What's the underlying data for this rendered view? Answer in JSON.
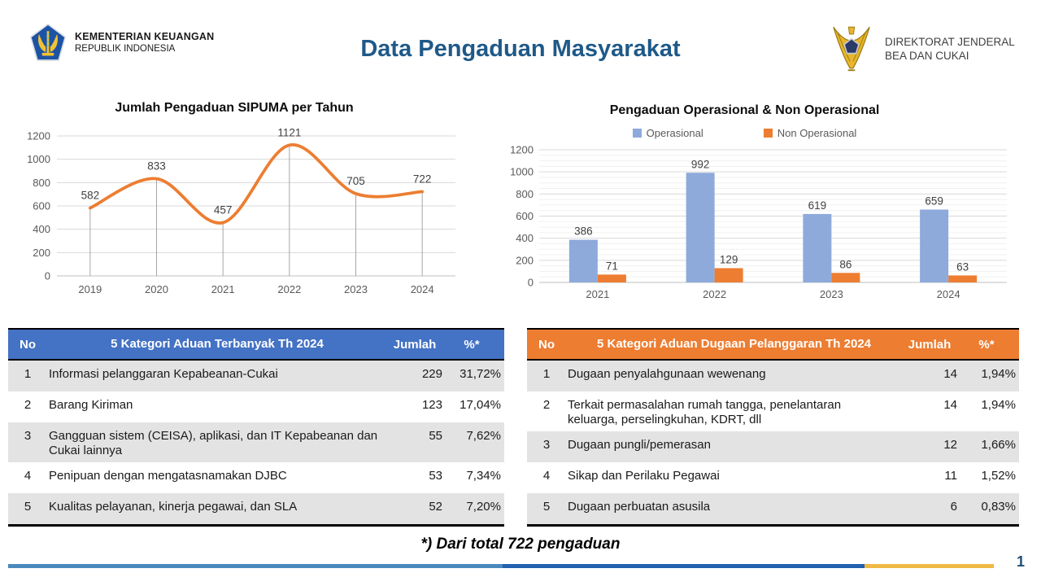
{
  "header": {
    "left_logo": {
      "line1": "KEMENTERIAN KEUANGAN",
      "line2": "REPUBLIK INDONESIA"
    },
    "title": "Data Pengaduan Masyarakat",
    "title_color": "#1f5988",
    "right_logo": {
      "line1": "DIREKTORAT JENDERAL",
      "line2": "BEA DAN CUKAI"
    }
  },
  "chart_data": [
    {
      "type": "line",
      "title": "Jumlah Pengaduan SIPUMA per Tahun",
      "categories": [
        "2019",
        "2020",
        "2021",
        "2022",
        "2023",
        "2024"
      ],
      "values": [
        582,
        833,
        457,
        1121,
        705,
        722
      ],
      "ylim": [
        0,
        1200
      ],
      "ytick_step": 200,
      "line_color": "#ED7D31",
      "grid": true,
      "drop_lines": true,
      "legend_position": "none"
    },
    {
      "type": "bar",
      "title": "Pengaduan Operasional & Non Operasional",
      "categories": [
        "2021",
        "2022",
        "2023",
        "2024"
      ],
      "series": [
        {
          "name": "Operasional",
          "color": "#8EAADB",
          "values": [
            386,
            992,
            619,
            659
          ]
        },
        {
          "name": "Non Operasional",
          "color": "#ED7D31",
          "values": [
            71,
            129,
            86,
            63
          ]
        }
      ],
      "ylim": [
        0,
        1200
      ],
      "ytick_step": 200,
      "ytick_minor_step": 50,
      "grid": true,
      "legend_position": "top"
    }
  ],
  "tables": {
    "left": {
      "header_color": "#4472C4",
      "header": {
        "no": "No",
        "category": "5 Kategori Aduan Terbanyak Th 2024",
        "jumlah": "Jumlah",
        "pct": "%*"
      },
      "rows": [
        {
          "no": "1",
          "category": "Informasi pelanggaran Kepabeanan-Cukai",
          "jumlah": "229",
          "pct": "31,72%"
        },
        {
          "no": "2",
          "category": "Barang Kiriman",
          "jumlah": "123",
          "pct": "17,04%"
        },
        {
          "no": "3",
          "category": "Gangguan sistem (CEISA), aplikasi, dan IT Kepabeanan dan Cukai lainnya",
          "jumlah": "55",
          "pct": "7,62%"
        },
        {
          "no": "4",
          "category": "Penipuan dengan mengatasnamakan DJBC",
          "jumlah": "53",
          "pct": "7,34%"
        },
        {
          "no": "5",
          "category": "Kualitas pelayanan, kinerja pegawai, dan SLA",
          "jumlah": "52",
          "pct": "7,20%"
        }
      ]
    },
    "right": {
      "header_color": "#ED7D31",
      "header": {
        "no": "No",
        "category": "5 Kategori Aduan Dugaan Pelanggaran Th 2024",
        "jumlah": "Jumlah",
        "pct": "%*"
      },
      "rows": [
        {
          "no": "1",
          "category": "Dugaan penyalahgunaan wewenang",
          "jumlah": "14",
          "pct": "1,94%"
        },
        {
          "no": "2",
          "category": "Terkait permasalahan rumah tangga, penelantaran keluarga, perselingkuhan, KDRT, dll",
          "jumlah": "14",
          "pct": "1,94%"
        },
        {
          "no": "3",
          "category": "Dugaan pungli/pemerasan",
          "jumlah": "12",
          "pct": "1,66%"
        },
        {
          "no": "4",
          "category": "Sikap dan Perilaku Pegawai",
          "jumlah": "11",
          "pct": "1,52%"
        },
        {
          "no": "5",
          "category": "Dugaan perbuatan asusila",
          "jumlah": "6",
          "pct": "0,83%"
        }
      ]
    }
  },
  "footer": {
    "note": "*) Dari total 722 pengaduan",
    "page_number": "1",
    "bar_colors": [
      "#4A89BD",
      "#2161AE",
      "#F0B845"
    ]
  }
}
